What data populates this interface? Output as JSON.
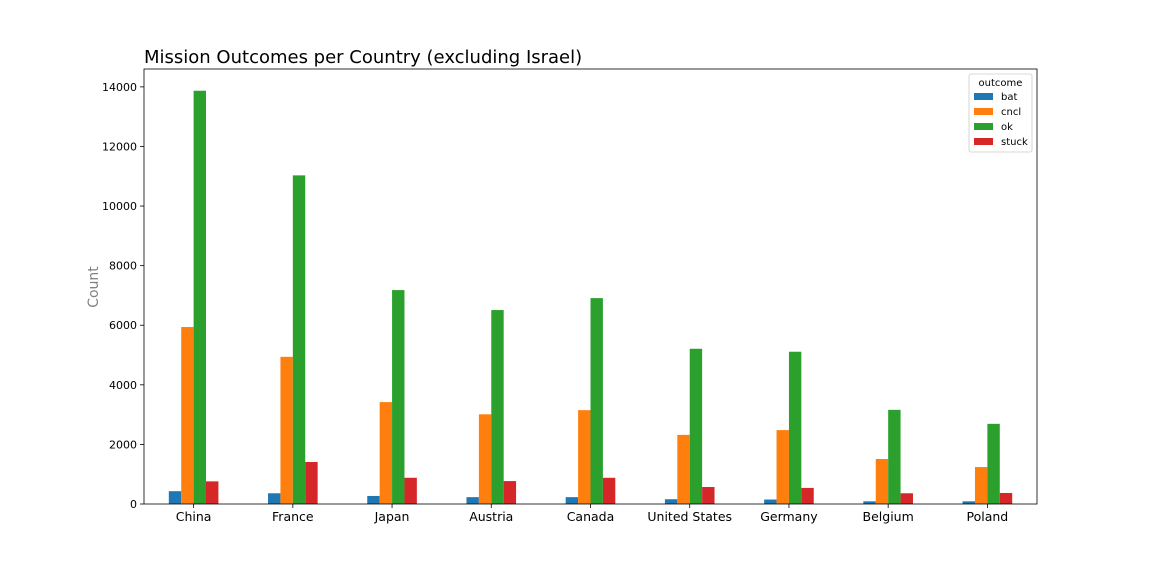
{
  "chart_data": {
    "type": "bar",
    "title": "Mission Outcomes per Country (excluding Israel)",
    "xlabel": "",
    "ylabel": "Count",
    "ylim": [
      0,
      14600
    ],
    "yticks": [
      0,
      2000,
      4000,
      6000,
      8000,
      10000,
      12000,
      14000
    ],
    "grid": false,
    "legend": {
      "title": "outcome",
      "placement": "top-right"
    },
    "categories": [
      "China",
      "France",
      "Japan",
      "Austria",
      "Canada",
      "United States",
      "Germany",
      "Belgium",
      "Poland"
    ],
    "series": [
      {
        "name": "bat",
        "color": "#1f77b4",
        "values": [
          430,
          360,
          270,
          230,
          230,
          160,
          150,
          90,
          90
        ]
      },
      {
        "name": "cncl",
        "color": "#ff7f0e",
        "values": [
          5940,
          4940,
          3420,
          3010,
          3150,
          2320,
          2480,
          1510,
          1240
        ]
      },
      {
        "name": "ok",
        "color": "#2ca02c",
        "values": [
          13870,
          11030,
          7180,
          6510,
          6910,
          5210,
          5110,
          3160,
          2690
        ]
      },
      {
        "name": "stuck",
        "color": "#d62728",
        "values": [
          760,
          1410,
          880,
          770,
          880,
          570,
          540,
          360,
          370
        ]
      }
    ]
  }
}
